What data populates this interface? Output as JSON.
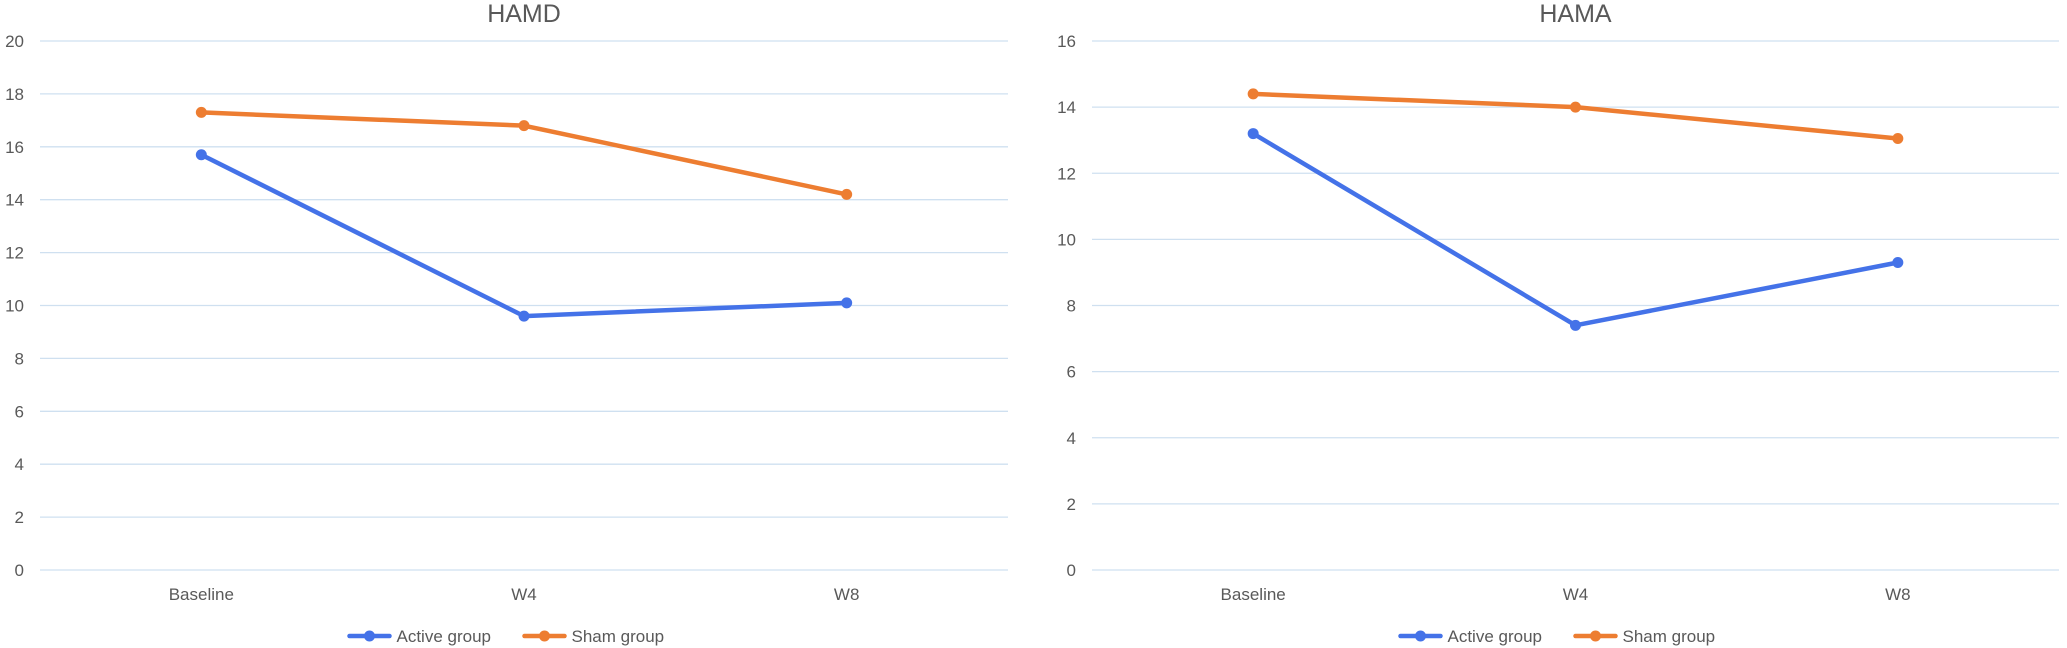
{
  "colors": {
    "active": "#4472E8",
    "sham": "#ED7D31",
    "grid": "#CFE0F0",
    "axis_text": "#595959",
    "title_text": "#595959"
  },
  "chart_data": [
    {
      "type": "line",
      "title": "HAMD",
      "categories": [
        "Baseline",
        "W4",
        "W8"
      ],
      "ylim": [
        0,
        20
      ],
      "yticks": [
        0,
        2,
        4,
        6,
        8,
        10,
        12,
        14,
        16,
        18,
        20
      ],
      "grid": true,
      "legend": "bottom",
      "series": [
        {
          "name": "Active group",
          "values": [
            15.7,
            9.6,
            10.1
          ]
        },
        {
          "name": "Sham group",
          "values": [
            17.3,
            16.8,
            14.2
          ]
        }
      ]
    },
    {
      "type": "line",
      "title": "HAMA",
      "categories": [
        "Baseline",
        "W4",
        "W8"
      ],
      "ylim": [
        0,
        16
      ],
      "yticks": [
        0,
        2,
        4,
        6,
        8,
        10,
        12,
        14,
        16
      ],
      "grid": true,
      "legend": "bottom",
      "series": [
        {
          "name": "Active group",
          "values": [
            13.2,
            7.4,
            9.3
          ]
        },
        {
          "name": "Sham group",
          "values": [
            14.4,
            14.0,
            13.05
          ]
        }
      ]
    }
  ]
}
